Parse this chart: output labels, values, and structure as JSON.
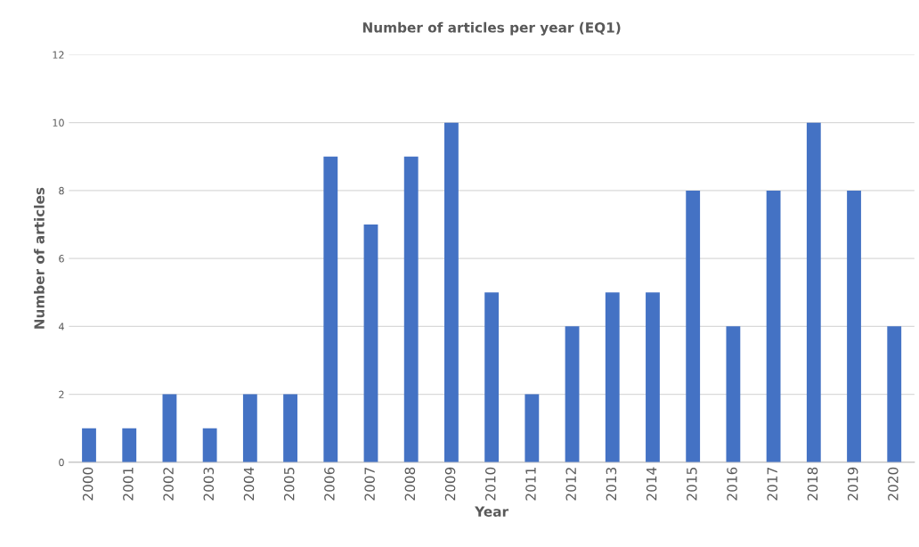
{
  "chart_data": {
    "type": "bar",
    "title": "Number of articles per year (EQ1)",
    "xlabel": "Year",
    "ylabel": "Number of articles",
    "categories": [
      "2000",
      "2001",
      "2002",
      "2003",
      "2004",
      "2005",
      "2006",
      "2007",
      "2008",
      "2009",
      "2010",
      "2011",
      "2012",
      "2013",
      "2014",
      "2015",
      "2016",
      "2017",
      "2018",
      "2019",
      "2020"
    ],
    "values": [
      1,
      1,
      2,
      1,
      2,
      2,
      9,
      7,
      9,
      10,
      5,
      2,
      4,
      5,
      5,
      8,
      4,
      8,
      10,
      8,
      4
    ],
    "color": "#4472c4",
    "ylim": [
      0,
      12
    ],
    "yticks": [
      0,
      2,
      4,
      6,
      8,
      10,
      12
    ],
    "grid": "y"
  }
}
